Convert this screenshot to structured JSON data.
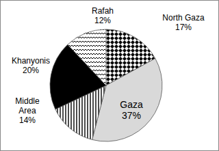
{
  "chart_data": {
    "type": "pie",
    "categories": [
      "North Gaza",
      "Gaza",
      "Middle Area",
      "Khanyonis",
      "Rafah"
    ],
    "values": [
      17,
      37,
      14,
      20,
      12
    ],
    "value_labels": [
      "17%",
      "37%",
      "14%",
      "20%",
      "12%"
    ],
    "colors": [
      "#000000",
      "#d9d9d9",
      "#000000",
      "#000000",
      "#000000"
    ],
    "data_labels": true
  }
}
